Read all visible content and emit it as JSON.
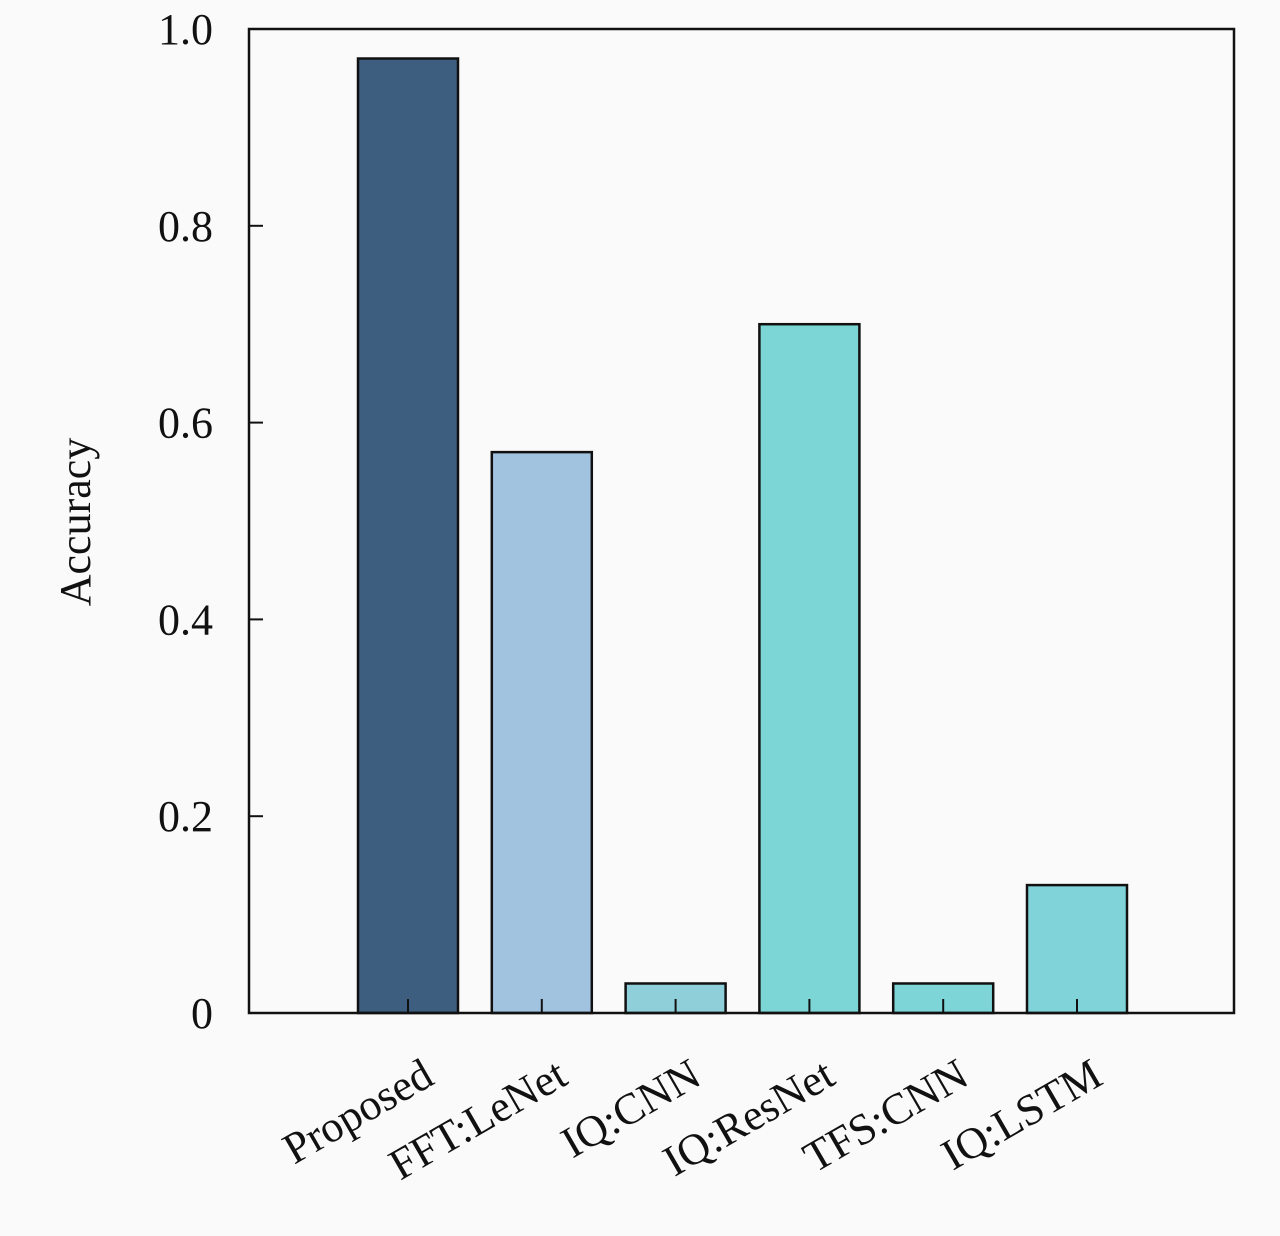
{
  "chart_data": {
    "type": "bar",
    "ylabel": "Accuracy",
    "categories": [
      "Proposed",
      "FFT:LeNet",
      "IQ:CNN",
      "IQ:ResNet",
      "TFS:CNN",
      "IQ:LSTM"
    ],
    "values": [
      0.97,
      0.57,
      0.03,
      0.7,
      0.03,
      0.13
    ],
    "colors": [
      "#3d5e7e",
      "#a2c3df",
      "#8fcfda",
      "#7dd6d6",
      "#7dd5d8",
      "#80d4d9"
    ],
    "ylim": [
      0,
      1
    ],
    "yticks": [
      0,
      0.2,
      0.4,
      0.6,
      0.8,
      {
        "value": 1,
        "label": "1.0"
      }
    ],
    "grid": false
  }
}
